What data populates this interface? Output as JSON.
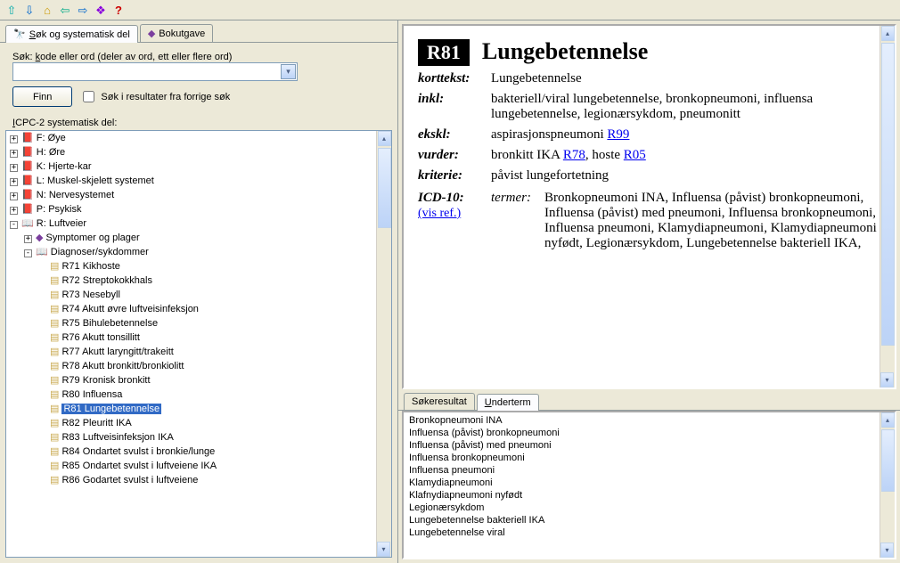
{
  "toolbar": {
    "icons": [
      "up-arrow-icon",
      "down-arrow-icon",
      "home-icon",
      "back-icon",
      "forward-icon",
      "book-icon",
      "help-icon"
    ]
  },
  "tabs": {
    "search": "Søk og systematisk del",
    "book": "Bokutgave"
  },
  "search": {
    "label": "Søk: kode eller ord (deler av ord, ett eller flere ord)",
    "find": "Finn",
    "checkbox": "Søk i resultater fra forrige søk"
  },
  "tree": {
    "label": "ICPC-2 systematisk del:",
    "top": [
      {
        "exp": "+",
        "label": "F: Øye"
      },
      {
        "exp": "+",
        "label": "H: Øre"
      },
      {
        "exp": "+",
        "label": "K: Hjerte-kar"
      },
      {
        "exp": "+",
        "label": "L: Muskel-skjelett systemet"
      },
      {
        "exp": "+",
        "label": "N: Nervesystemet"
      },
      {
        "exp": "+",
        "label": "P: Psykisk"
      }
    ],
    "openChapter": "R: Luftveier",
    "symptoms": "Symptomer og plager",
    "diseases": "Diagnoser/sykdommer",
    "items": [
      "R71 Kikhoste",
      "R72 Streptokokkhals",
      "R73 Nesebyll",
      "R74 Akutt øvre luftveisinfeksjon",
      "R75 Bihulebetennelse",
      "R76 Akutt tonsillitt",
      "R77 Akutt laryngitt/trakeitt",
      "R78 Akutt bronkitt/bronkiolitt",
      "R79 Kronisk bronkitt",
      "R80 Influensa",
      "R81 Lungebetennelse",
      "R82 Pleuritt IKA",
      "R83 Luftveisinfeksjon IKA",
      "R84 Ondartet svulst i bronkie/lunge",
      "R85 Ondartet svulst i luftveiene IKA",
      "R86 Godartet svulst i luftveiene"
    ],
    "selected": "R81 Lungebetennelse"
  },
  "detail": {
    "code": "R81",
    "title": "Lungebetennelse",
    "korttekst_k": "korttekst:",
    "korttekst_v": "Lungebetennelse",
    "inkl_k": "inkl:",
    "inkl_v": "bakteriell/viral lungebetennelse, bronkopneumoni, influensa lungebetennelse, legionærsykdom, pneumonitt",
    "ekskl_k": "ekskl:",
    "ekskl_pre": "aspirasjonspneumoni ",
    "ekskl_link": "R99",
    "vurder_k": "vurder:",
    "vurder_pre": "bronkitt IKA ",
    "vurder_link1": "R78",
    "vurder_mid": ", hoste ",
    "vurder_link2": "R05",
    "kriterie_k": "kriterie:",
    "kriterie_v": "påvist lungefortetning",
    "icd_k": "ICD-10:",
    "icd_ref": "(vis ref.)",
    "icd_sub": "termer:",
    "icd_v": "Bronkopneumoni INA, Influensa (påvist) bronkopneumoni, Influensa (påvist) med pneumoni, Influensa bronkopneumoni, Influensa pneumoni, Klamydiapneumoni, Klamydiapneumoni nyfødt, Legionærsykdom, Lungebetennelse bakteriell IKA,"
  },
  "lowerTabs": {
    "search": "Søkeresultat",
    "under": "Underterm"
  },
  "underterms": [
    "Bronkopneumoni INA",
    "Influensa (påvist) bronkopneumoni",
    "Influensa (påvist) med pneumoni",
    "Influensa bronkopneumoni",
    "Influensa pneumoni",
    "Klamydiapneumoni",
    "Klafnydiapneumoni nyfødt",
    "Legionærsykdom",
    "Lungebetennelse bakteriell IKA",
    "Lungebetennelse viral"
  ],
  "colors": {
    "bg": "#ece9d8",
    "border": "#919b9c",
    "input_border": "#7f9db9",
    "selection": "#316ac5",
    "link": "#0000ee"
  }
}
